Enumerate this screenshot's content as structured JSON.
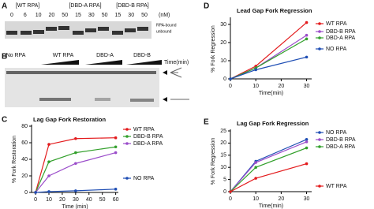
{
  "panels": {
    "A": {
      "label": "A",
      "groups": [
        "[WT RPA]",
        "[DBD-A RPA]",
        "[DBD-B RPA]"
      ],
      "concentrations": [
        0,
        6,
        10,
        20,
        50,
        15,
        30,
        50,
        15,
        30,
        50
      ],
      "unit": "(nM)",
      "band_labels": [
        "RPA-bound",
        "unbound"
      ]
    },
    "B": {
      "label": "B",
      "groups": [
        "No RPA",
        "WT RPA",
        "DBD-A",
        "DBD-B"
      ],
      "time_label": "Time(min)"
    },
    "C": {
      "label": "C"
    },
    "D": {
      "label": "D"
    },
    "E": {
      "label": "E"
    }
  },
  "chart_data": [
    {
      "type": "line",
      "title": "Lag Gap Fork Restoration",
      "x_label": "Time (min)",
      "y_label": "% Fork Restoration",
      "x": [
        0,
        10,
        30,
        60
      ],
      "xlim": [
        -3,
        62
      ],
      "xticks": [
        0,
        10,
        20,
        30,
        40,
        50,
        60
      ],
      "ylim": [
        0,
        80
      ],
      "yticks": [
        0,
        20,
        40,
        60,
        80
      ],
      "series": [
        {
          "name": "WT RPA",
          "color": "#e31a1c",
          "values": [
            0,
            58,
            65,
            66
          ]
        },
        {
          "name": "DBD-B RPA",
          "color": "#33a02c",
          "values": [
            0,
            37,
            48,
            55
          ]
        },
        {
          "name": "DBD-A RPA",
          "color": "#9b4dca",
          "values": [
            0,
            20,
            35,
            48
          ]
        },
        {
          "name": "NO RPA",
          "color": "#1f4eb4",
          "values": [
            0,
            1,
            2,
            4
          ]
        }
      ]
    },
    {
      "type": "line",
      "title": "Lead Gap Fork Regression",
      "x_label": "Time(min)",
      "y_label": "% Fork Regression",
      "x": [
        0,
        10,
        30
      ],
      "xlim": [
        0,
        32
      ],
      "xticks": [
        0,
        10,
        20,
        30
      ],
      "ylim": [
        0,
        33
      ],
      "yticks": [
        0,
        10,
        20,
        30
      ],
      "series": [
        {
          "name": "WT RPA",
          "color": "#e31a1c",
          "values": [
            0,
            7,
            31
          ]
        },
        {
          "name": "DBD-B RPA",
          "color": "#9b4dca",
          "values": [
            0,
            6,
            24
          ]
        },
        {
          "name": "DBD-A RPA",
          "color": "#33a02c",
          "values": [
            0,
            6,
            22
          ]
        },
        {
          "name": "NO RPA",
          "color": "#1f4eb4",
          "values": [
            0,
            5,
            12
          ]
        }
      ]
    },
    {
      "type": "line",
      "title": "Lag Gap Fork Regression",
      "x_label": "Time(min)",
      "y_label": "% Fork Regression",
      "x": [
        0,
        10,
        30
      ],
      "xlim": [
        0,
        32
      ],
      "xticks": [
        0,
        10,
        20,
        30
      ],
      "ylim": [
        0,
        25
      ],
      "yticks": [
        0,
        5,
        10,
        15,
        20,
        25
      ],
      "series": [
        {
          "name": "NO RPA",
          "color": "#1f4eb4",
          "values": [
            0,
            12.5,
            21.5
          ]
        },
        {
          "name": "DBD-B RPA",
          "color": "#9b4dca",
          "values": [
            0,
            12,
            20.5
          ]
        },
        {
          "name": "DBD-A RPA",
          "color": "#33a02c",
          "values": [
            0,
            10,
            18
          ]
        },
        {
          "name": "WT RPA",
          "color": "#e31a1c",
          "values": [
            0,
            5.5,
            11.5
          ]
        }
      ]
    }
  ]
}
